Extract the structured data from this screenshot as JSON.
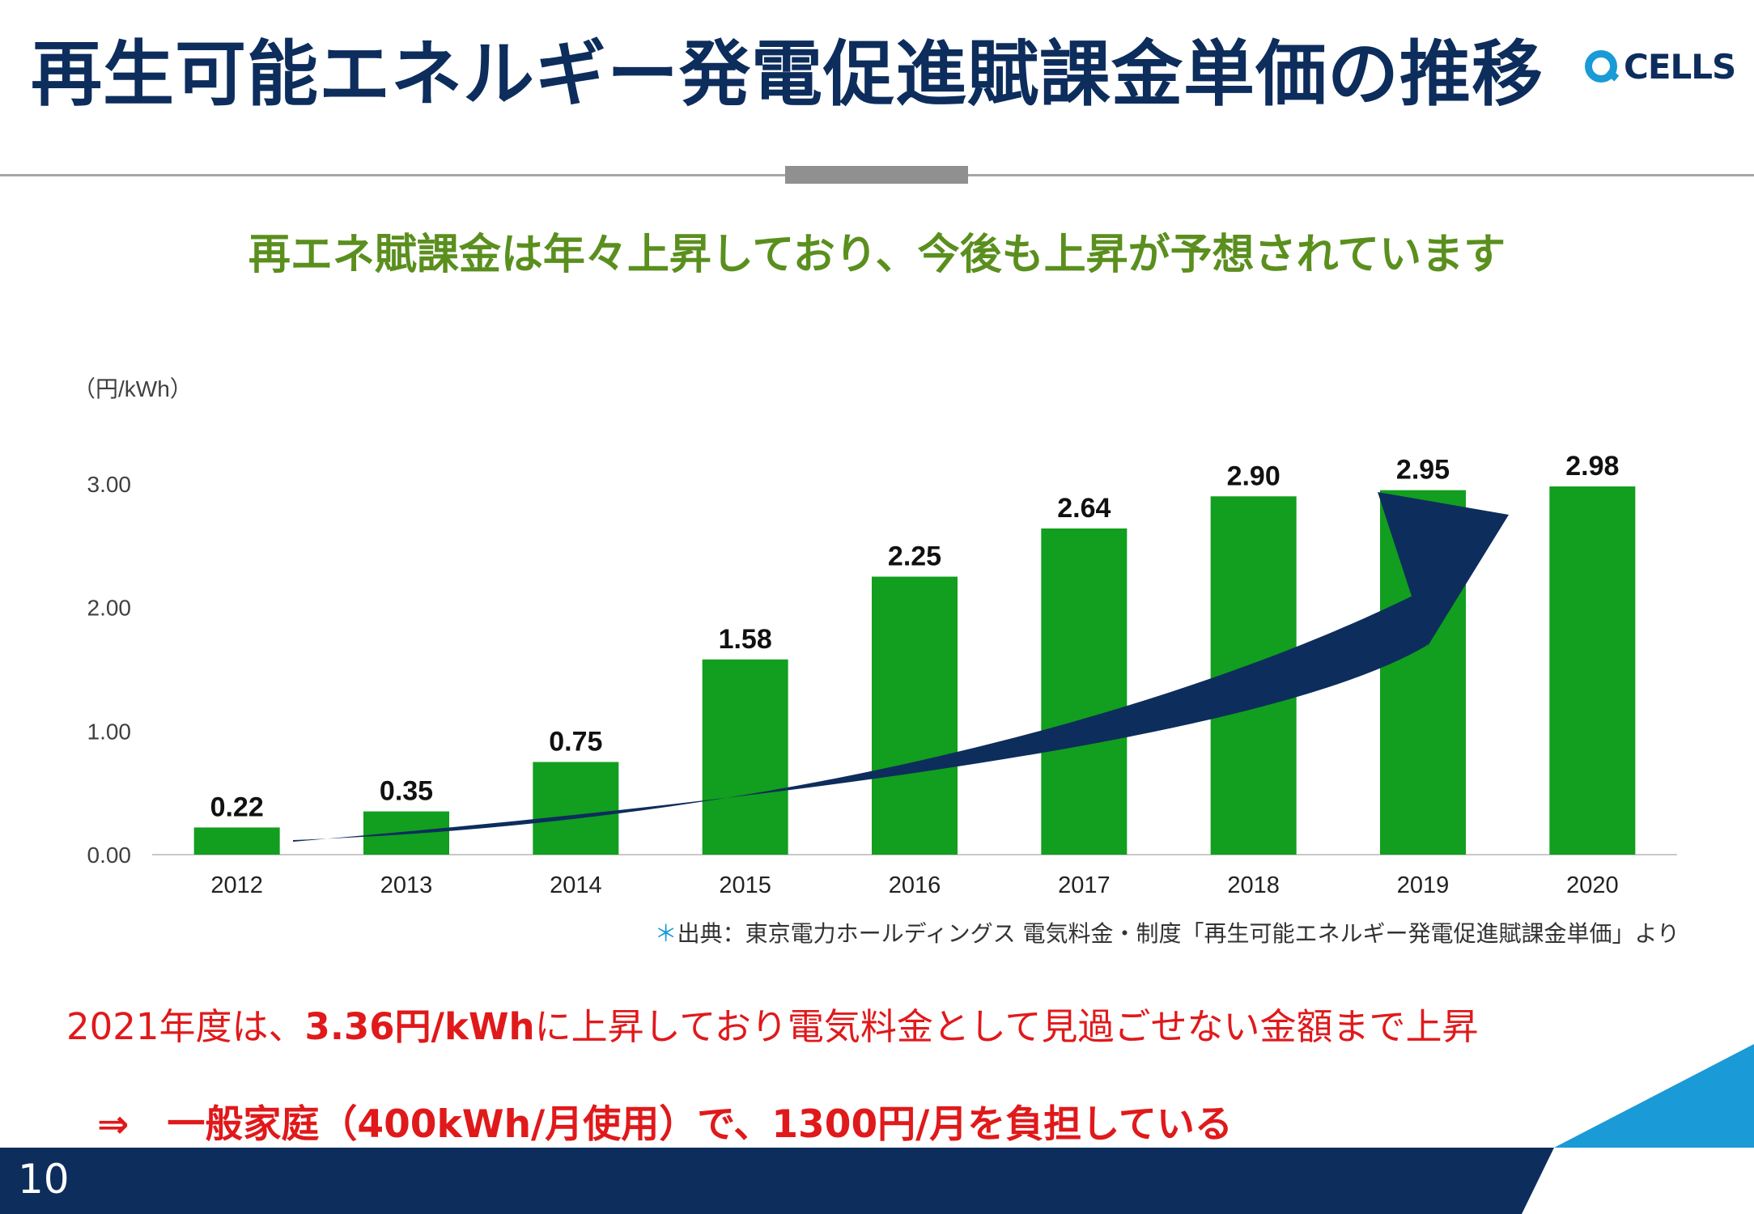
{
  "slide": {
    "title": "再生可能エネルギー発電促進賦課金単価の推移",
    "logo_text": "CELLS",
    "subtitle": "再エネ賦課金は年々上昇しており、今後も上昇が予想されています",
    "source_mark": "＊",
    "source": "出典：東京電力ホールディングス 電気料金・制度「再生可能エネルギー発電促進賦課金単価」より",
    "note1_prefix": "2021年度は、",
    "note1_highlight": "3.36円/kWh",
    "note1_suffix": "に上昇しており電気料金として見過ごせない金額まで上昇",
    "note2": "⇒　一般家庭（400kWh/月使用）で、1300円/月を負担している",
    "page_number": "10"
  },
  "colors": {
    "title": "#0d2d5c",
    "bar": "#129e1e",
    "arrow": "#0d2d5c",
    "subtitle": "#5a8f1e",
    "note": "#e0191b",
    "accent": "#1a9ad6"
  },
  "chart_data": {
    "type": "bar",
    "unit_label": "（円/kWh）",
    "categories": [
      "2012",
      "2013",
      "2014",
      "2015",
      "2016",
      "2017",
      "2018",
      "2019",
      "2020"
    ],
    "values": [
      0.22,
      0.35,
      0.75,
      1.58,
      2.25,
      2.64,
      2.9,
      2.95,
      2.98
    ],
    "value_labels": [
      "0.22",
      "0.35",
      "0.75",
      "1.58",
      "2.25",
      "2.64",
      "2.90",
      "2.95",
      "2.98"
    ],
    "yticks": [
      "0.00",
      "1.00",
      "2.00",
      "3.00"
    ],
    "ylim": [
      0,
      3
    ],
    "grid": false,
    "legend": "none",
    "annotation": "trend-arrow"
  }
}
